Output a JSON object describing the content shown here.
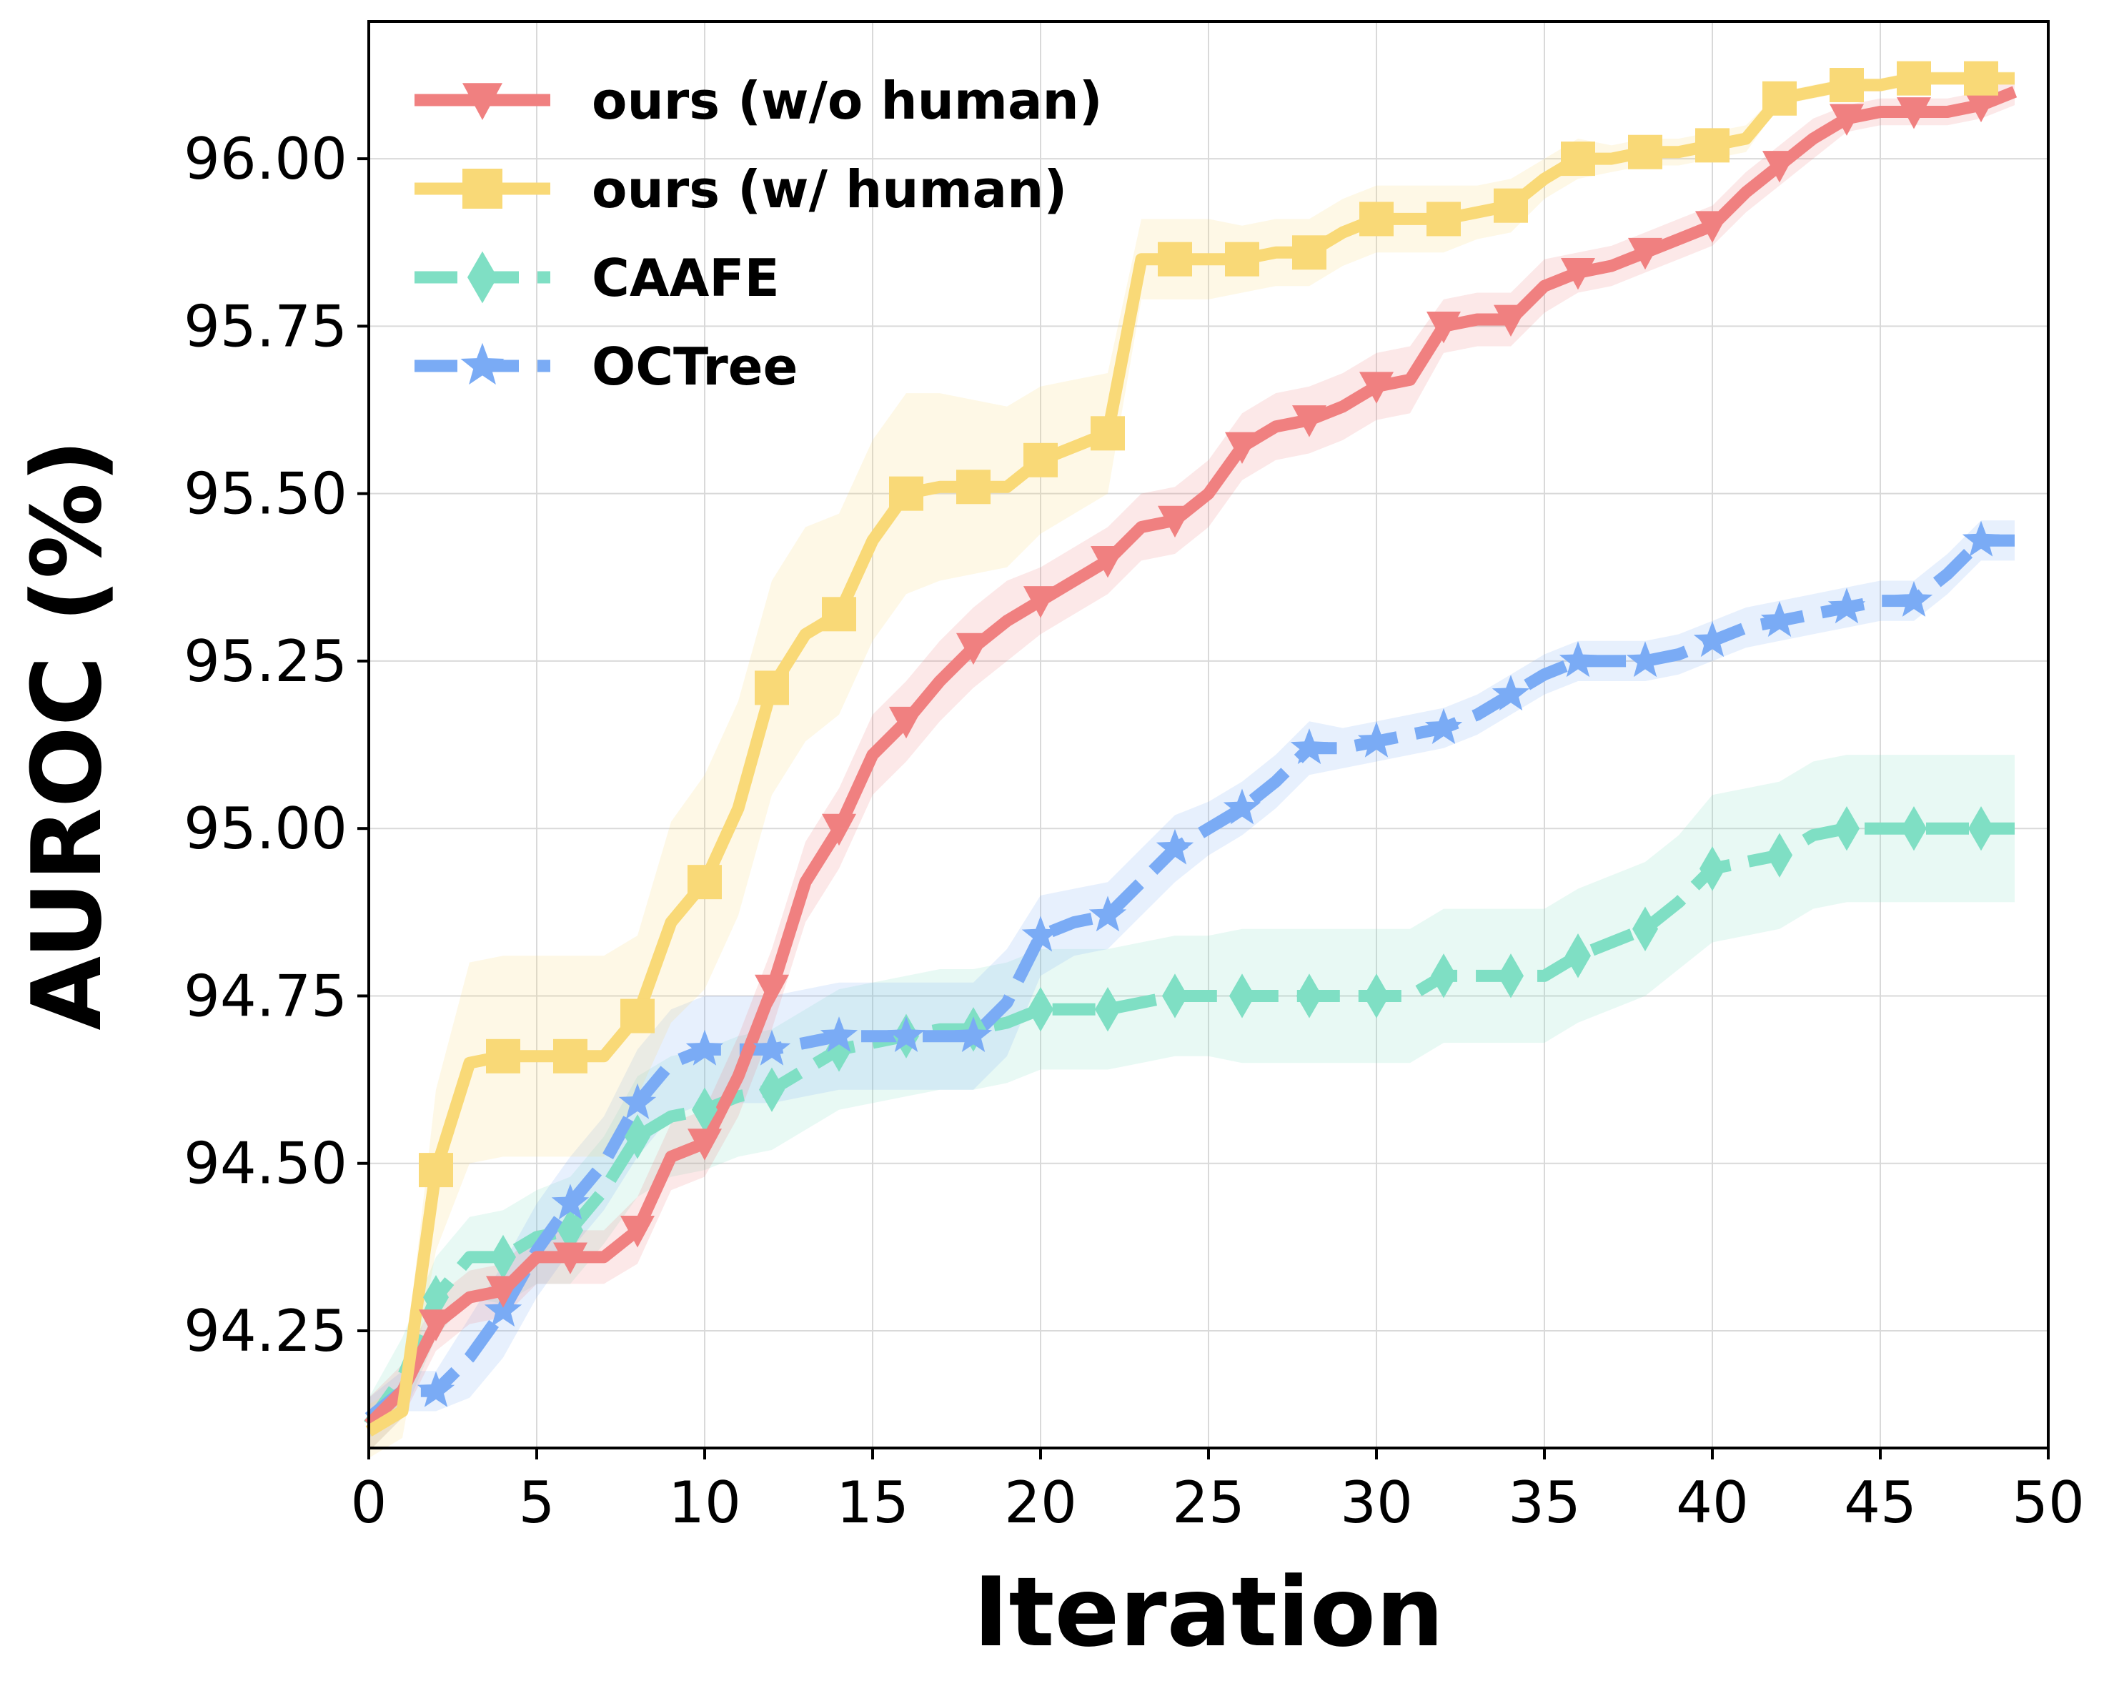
{
  "chart_data": {
    "type": "line",
    "title": "",
    "xlabel": "Iteration",
    "ylabel": "AUROC (%)",
    "xlim": [
      0,
      50
    ],
    "ylim": [
      94.075,
      96.205
    ],
    "xticks": [
      0,
      5,
      10,
      15,
      20,
      25,
      30,
      35,
      40,
      45,
      50
    ],
    "xtick_labels": [
      "0",
      "5",
      "10",
      "15",
      "20",
      "25",
      "30",
      "35",
      "40",
      "45",
      "50"
    ],
    "yticks": [
      94.25,
      94.5,
      94.75,
      95.0,
      95.25,
      95.5,
      95.75,
      96.0
    ],
    "ytick_labels": [
      "94.25",
      "94.50",
      "94.75",
      "95.00",
      "95.25",
      "95.50",
      "95.75",
      "96.00"
    ],
    "grid": true,
    "legend_position": "top-left",
    "series": [
      {
        "name": "ours (w/o human)",
        "color": "#f08080",
        "line_style": "solid",
        "marker": "triangle-down",
        "x": [
          0,
          1,
          2,
          3,
          4,
          5,
          6,
          7,
          8,
          9,
          10,
          11,
          12,
          13,
          14,
          15,
          16,
          17,
          18,
          19,
          20,
          21,
          22,
          23,
          24,
          25,
          26,
          27,
          28,
          29,
          30,
          31,
          32,
          33,
          34,
          35,
          36,
          37,
          38,
          39,
          40,
          41,
          42,
          43,
          44,
          45,
          46,
          47,
          48,
          49
        ],
        "y": [
          94.11,
          94.16,
          94.26,
          94.3,
          94.31,
          94.36,
          94.36,
          94.36,
          94.4,
          94.51,
          94.53,
          94.63,
          94.76,
          94.92,
          95.0,
          95.11,
          95.16,
          95.22,
          95.27,
          95.31,
          95.34,
          95.37,
          95.4,
          95.45,
          95.46,
          95.5,
          95.57,
          95.6,
          95.61,
          95.63,
          95.66,
          95.67,
          95.75,
          95.76,
          95.76,
          95.81,
          95.83,
          95.84,
          95.86,
          95.88,
          95.9,
          95.95,
          95.99,
          96.03,
          96.06,
          96.07,
          96.07,
          96.07,
          96.08,
          96.1
        ],
        "band": [
          0.04,
          0.04,
          0.04,
          0.04,
          0.04,
          0.04,
          0.04,
          0.04,
          0.05,
          0.05,
          0.05,
          0.06,
          0.06,
          0.06,
          0.06,
          0.06,
          0.06,
          0.06,
          0.06,
          0.06,
          0.05,
          0.05,
          0.05,
          0.05,
          0.05,
          0.05,
          0.05,
          0.05,
          0.05,
          0.05,
          0.05,
          0.05,
          0.04,
          0.04,
          0.04,
          0.04,
          0.03,
          0.03,
          0.03,
          0.03,
          0.03,
          0.03,
          0.03,
          0.03,
          0.02,
          0.02,
          0.02,
          0.02,
          0.02,
          0.02
        ]
      },
      {
        "name": "ours (w/ human)",
        "color": "#f9d977",
        "line_style": "solid",
        "marker": "square",
        "x": [
          0,
          1,
          2,
          3,
          4,
          5,
          6,
          7,
          8,
          9,
          10,
          11,
          12,
          13,
          14,
          15,
          16,
          17,
          18,
          19,
          20,
          21,
          22,
          23,
          24,
          25,
          26,
          27,
          28,
          29,
          30,
          31,
          32,
          33,
          34,
          35,
          36,
          37,
          38,
          39,
          40,
          41,
          42,
          43,
          44,
          45,
          46,
          47,
          48,
          49
        ],
        "y": [
          94.1,
          94.13,
          94.49,
          94.65,
          94.66,
          94.66,
          94.66,
          94.66,
          94.72,
          94.86,
          94.92,
          95.03,
          95.21,
          95.29,
          95.32,
          95.43,
          95.5,
          95.51,
          95.51,
          95.51,
          95.55,
          95.57,
          95.59,
          95.85,
          95.85,
          95.85,
          95.85,
          95.86,
          95.86,
          95.89,
          95.91,
          95.91,
          95.91,
          95.92,
          95.93,
          95.97,
          96.0,
          96.0,
          96.01,
          96.01,
          96.02,
          96.03,
          96.09,
          96.1,
          96.11,
          96.11,
          96.12,
          96.12,
          96.12,
          96.12
        ],
        "band": [
          0.04,
          0.04,
          0.12,
          0.15,
          0.15,
          0.15,
          0.15,
          0.15,
          0.12,
          0.15,
          0.16,
          0.16,
          0.16,
          0.16,
          0.15,
          0.15,
          0.15,
          0.14,
          0.13,
          0.12,
          0.11,
          0.1,
          0.09,
          0.06,
          0.06,
          0.06,
          0.05,
          0.05,
          0.05,
          0.05,
          0.05,
          0.05,
          0.05,
          0.04,
          0.04,
          0.03,
          0.03,
          0.02,
          0.02,
          0.02,
          0.02,
          0.02,
          0.01,
          0.01,
          0.01,
          0.01,
          0.01,
          0.01,
          0.01,
          0.01
        ]
      },
      {
        "name": "CAAFE",
        "color": "#7fdfc4",
        "line_style": "dashed",
        "marker": "diamond",
        "x": [
          0,
          1,
          2,
          3,
          4,
          5,
          6,
          7,
          8,
          9,
          10,
          11,
          12,
          13,
          14,
          15,
          16,
          17,
          18,
          19,
          20,
          21,
          22,
          23,
          24,
          25,
          26,
          27,
          28,
          29,
          30,
          31,
          32,
          33,
          34,
          35,
          36,
          37,
          38,
          39,
          40,
          41,
          42,
          43,
          44,
          45,
          46,
          47,
          48,
          49
        ],
        "y": [
          94.11,
          94.18,
          94.3,
          94.36,
          94.36,
          94.39,
          94.4,
          94.46,
          94.54,
          94.57,
          94.58,
          94.6,
          94.61,
          94.64,
          94.67,
          94.68,
          94.69,
          94.7,
          94.7,
          94.71,
          94.73,
          94.73,
          94.73,
          94.74,
          94.75,
          94.75,
          94.75,
          94.75,
          94.75,
          94.75,
          94.75,
          94.75,
          94.78,
          94.78,
          94.78,
          94.78,
          94.81,
          94.83,
          94.85,
          94.89,
          94.94,
          94.95,
          94.96,
          94.99,
          95.0,
          95.0,
          95.0,
          95.0,
          95.0,
          95.0
        ],
        "band": [
          0.04,
          0.06,
          0.06,
          0.06,
          0.07,
          0.07,
          0.08,
          0.08,
          0.09,
          0.09,
          0.09,
          0.09,
          0.09,
          0.09,
          0.09,
          0.09,
          0.09,
          0.09,
          0.09,
          0.09,
          0.09,
          0.09,
          0.09,
          0.09,
          0.09,
          0.09,
          0.1,
          0.1,
          0.1,
          0.1,
          0.1,
          0.1,
          0.1,
          0.1,
          0.1,
          0.1,
          0.1,
          0.1,
          0.1,
          0.1,
          0.11,
          0.11,
          0.11,
          0.11,
          0.11,
          0.11,
          0.11,
          0.11,
          0.11,
          0.11
        ]
      },
      {
        "name": "OCTree",
        "color": "#7aabf5",
        "line_style": "dashed",
        "marker": "star",
        "x": [
          0,
          1,
          2,
          3,
          4,
          5,
          6,
          7,
          8,
          9,
          10,
          11,
          12,
          13,
          14,
          15,
          16,
          17,
          18,
          19,
          20,
          21,
          22,
          23,
          24,
          25,
          26,
          27,
          28,
          29,
          30,
          31,
          32,
          33,
          34,
          35,
          36,
          37,
          38,
          39,
          40,
          41,
          42,
          43,
          44,
          45,
          46,
          47,
          48,
          49
        ],
        "y": [
          94.12,
          94.16,
          94.16,
          94.21,
          94.28,
          94.37,
          94.44,
          94.5,
          94.59,
          94.65,
          94.67,
          94.67,
          94.67,
          94.68,
          94.69,
          94.69,
          94.69,
          94.69,
          94.69,
          94.74,
          94.84,
          94.86,
          94.87,
          94.92,
          94.97,
          95.0,
          95.03,
          95.07,
          95.12,
          95.12,
          95.13,
          95.14,
          95.15,
          95.17,
          95.2,
          95.23,
          95.25,
          95.25,
          95.25,
          95.26,
          95.28,
          95.3,
          95.31,
          95.32,
          95.33,
          95.34,
          95.34,
          95.38,
          95.43,
          95.43
        ],
        "band": [
          0.03,
          0.03,
          0.03,
          0.06,
          0.07,
          0.07,
          0.07,
          0.07,
          0.08,
          0.08,
          0.08,
          0.08,
          0.08,
          0.08,
          0.08,
          0.08,
          0.08,
          0.08,
          0.08,
          0.08,
          0.06,
          0.05,
          0.05,
          0.05,
          0.05,
          0.04,
          0.04,
          0.04,
          0.04,
          0.03,
          0.03,
          0.03,
          0.03,
          0.03,
          0.03,
          0.03,
          0.03,
          0.03,
          0.03,
          0.03,
          0.03,
          0.03,
          0.03,
          0.03,
          0.03,
          0.03,
          0.03,
          0.03,
          0.03,
          0.03
        ]
      }
    ]
  }
}
